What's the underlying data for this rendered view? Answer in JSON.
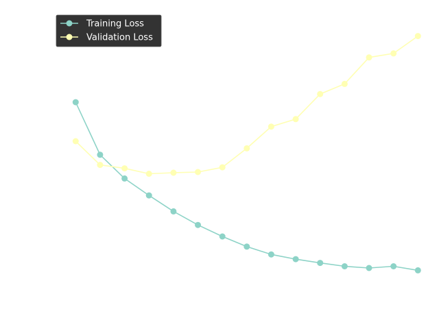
{
  "chart_data": {
    "type": "line",
    "title": "",
    "xlabel": "",
    "ylabel": "",
    "x": [
      1,
      2,
      3,
      4,
      5,
      6,
      7,
      8,
      9,
      10,
      11,
      12,
      13,
      14,
      15
    ],
    "xlim": [
      0.15,
      15.3
    ],
    "ylim": [
      0.17,
      1.015
    ],
    "grid": false,
    "legend_position": "top-left",
    "series": [
      {
        "name": "Training Loss",
        "color": "#8dd3c7",
        "values": [
          0.75,
          0.595,
          0.525,
          0.475,
          0.428,
          0.388,
          0.354,
          0.324,
          0.301,
          0.287,
          0.276,
          0.266,
          0.261,
          0.266,
          0.254
        ]
      },
      {
        "name": "Validation Loss",
        "color": "#ffffb3",
        "values": [
          0.635,
          0.565,
          0.555,
          0.539,
          0.542,
          0.544,
          0.558,
          0.614,
          0.678,
          0.7,
          0.774,
          0.804,
          0.882,
          0.894,
          0.945
        ]
      }
    ]
  }
}
